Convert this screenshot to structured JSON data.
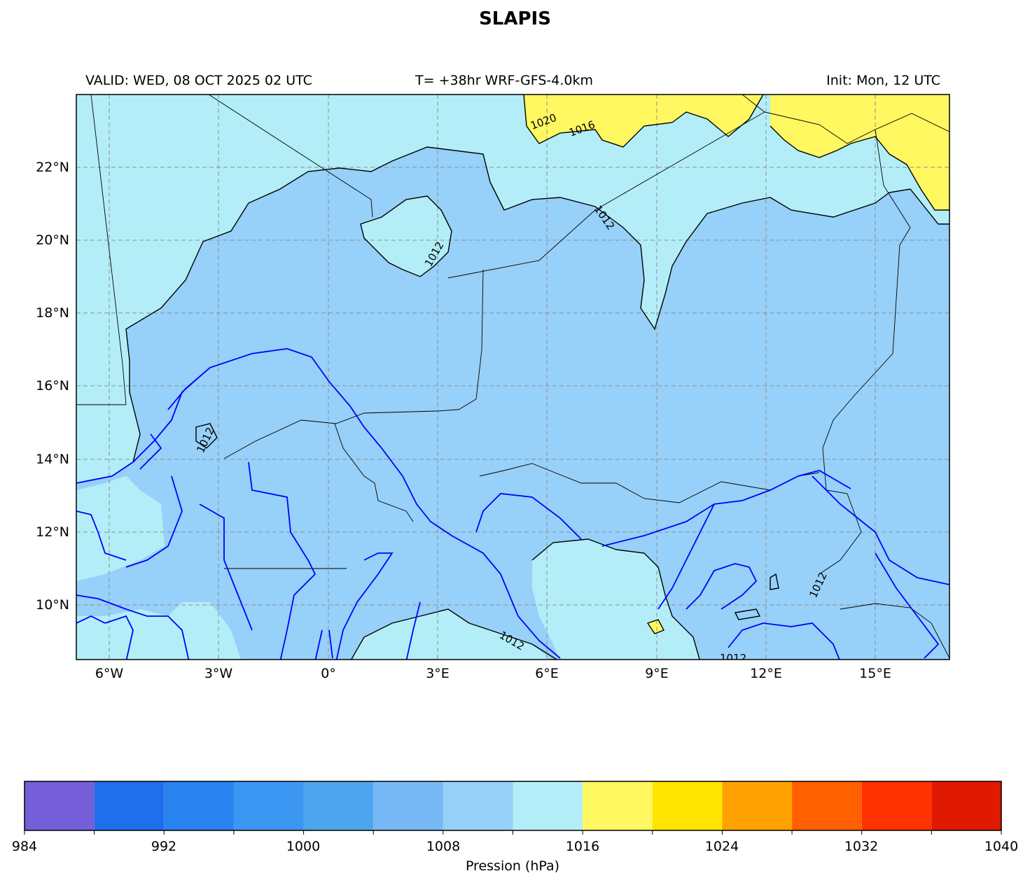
{
  "title": "SLAPIS",
  "header": {
    "valid": "VALID: WED, 08 OCT 2025 02 UTC",
    "forecast": "T= +38hr WRF-GFS-4.0km",
    "init": "Init: Mon, 12 UTC"
  },
  "map": {
    "lon_range": [
      -7,
      17
    ],
    "lat_range": [
      8.5,
      24
    ],
    "x_ticks": [
      "6°W",
      "3°W",
      "0°",
      "3°E",
      "6°E",
      "9°E",
      "12°E",
      "15°E"
    ],
    "y_ticks": [
      "22°N",
      "20°N",
      "18°N",
      "16°N",
      "14°N",
      "12°N",
      "10°N"
    ],
    "contour_labels": [
      "1020",
      "1016",
      "1012",
      "1012",
      "1012",
      "1012",
      "1012",
      "1012"
    ],
    "colors": {
      "ocean_or_low": "#97d0f8",
      "mid": "#b3eef8",
      "high": "#fff860",
      "coast": "#000000",
      "rivers": "#0000ff",
      "grid": "#8f8f8f"
    }
  },
  "colorbar": {
    "label": "Pression (hPa)",
    "levels": [
      984,
      988,
      992,
      996,
      1000,
      1004,
      1008,
      1012,
      1016,
      1020,
      1024,
      1028,
      1032,
      1036,
      1040
    ],
    "tick_labels": [
      "984",
      "992",
      "1000",
      "1008",
      "1016",
      "1024",
      "1032",
      "1040"
    ],
    "colors": [
      "#745fd9",
      "#1f6eec",
      "#2883ee",
      "#3c97f3",
      "#4ea5ef",
      "#76b8f5",
      "#97d0f8",
      "#b3eef8",
      "#fff860",
      "#ffe500",
      "#ffa100",
      "#ff6000",
      "#ff3200",
      "#e01a00"
    ]
  }
}
